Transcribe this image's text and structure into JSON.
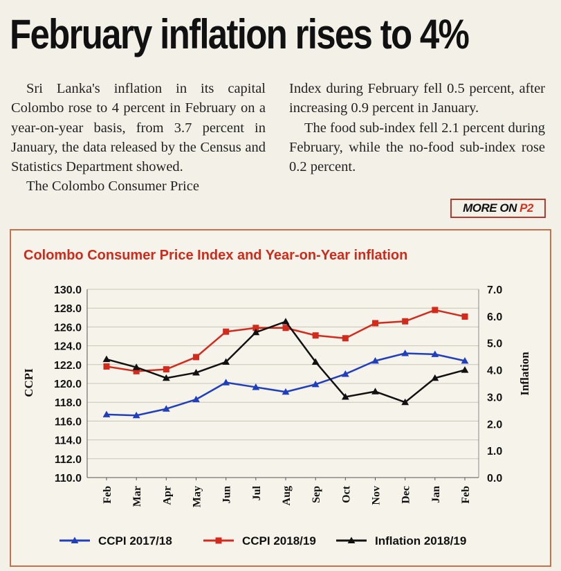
{
  "article": {
    "headline": "February inflation rises to 4%",
    "left_p1": "Sri Lanka's inflation in its capital Colombo rose to 4 percent in February on a year-on-year basis, from 3.7 percent in January, the data released by the Census and Statistics Department showed.",
    "left_p2": "The Colombo Consumer Price",
    "right_p1": "Index during February fell 0.5 percent, after increasing 0.9 percent in January.",
    "right_p2": "The food sub-index fell 2.1 percent during February, while the no-food sub-index rose 0.2 percent.",
    "more_label": "MORE ON ",
    "more_page": "P2"
  },
  "colors": {
    "ccpi_2017": "#1f3fbf",
    "ccpi_2018": "#d42a1c",
    "inflation": "#111111",
    "title": "#cf2a1a",
    "border": "#c8704a"
  },
  "chart_data": {
    "type": "line",
    "title": "Colombo Consumer Price Index and Year-on-Year inflation",
    "xlabel": "",
    "ylabel": "CCPI",
    "y2label": "Inflation",
    "categories": [
      "Feb",
      "Mar",
      "Apr",
      "May",
      "Jun",
      "Jul",
      "Aug",
      "Sep",
      "Oct",
      "Nov",
      "Dec",
      "Jan",
      "Feb"
    ],
    "ylim": [
      110,
      130
    ],
    "y2lim": [
      0,
      7
    ],
    "yticks": [
      "110.0",
      "112.0",
      "114.0",
      "116.0",
      "118.0",
      "120.0",
      "122.0",
      "124.0",
      "126.0",
      "128.0",
      "130.0"
    ],
    "y2ticks": [
      "0.0",
      "1.0",
      "2.0",
      "3.0",
      "4.0",
      "5.0",
      "6.0",
      "7.0"
    ],
    "grid": "horizontal",
    "legend_position": "bottom",
    "series": [
      {
        "name": "CCPI 2017/18",
        "axis": "left",
        "marker": "triangle",
        "color": "#1f3fbf",
        "values": [
          116.7,
          116.6,
          117.3,
          118.3,
          120.1,
          119.6,
          119.1,
          119.9,
          121.0,
          122.4,
          123.2,
          123.1,
          122.4
        ]
      },
      {
        "name": "CCPI 2018/19",
        "axis": "left",
        "marker": "square",
        "color": "#d42a1c",
        "values": [
          121.8,
          121.3,
          121.5,
          122.8,
          125.5,
          125.9,
          125.9,
          125.1,
          124.8,
          126.4,
          126.6,
          127.8,
          127.1
        ]
      },
      {
        "name": "Inflation 2018/19",
        "axis": "right",
        "marker": "triangle",
        "color": "#111111",
        "values": [
          4.4,
          4.1,
          3.7,
          3.9,
          4.3,
          5.4,
          5.8,
          4.3,
          3.0,
          3.2,
          2.8,
          3.7,
          4.0
        ]
      }
    ]
  }
}
